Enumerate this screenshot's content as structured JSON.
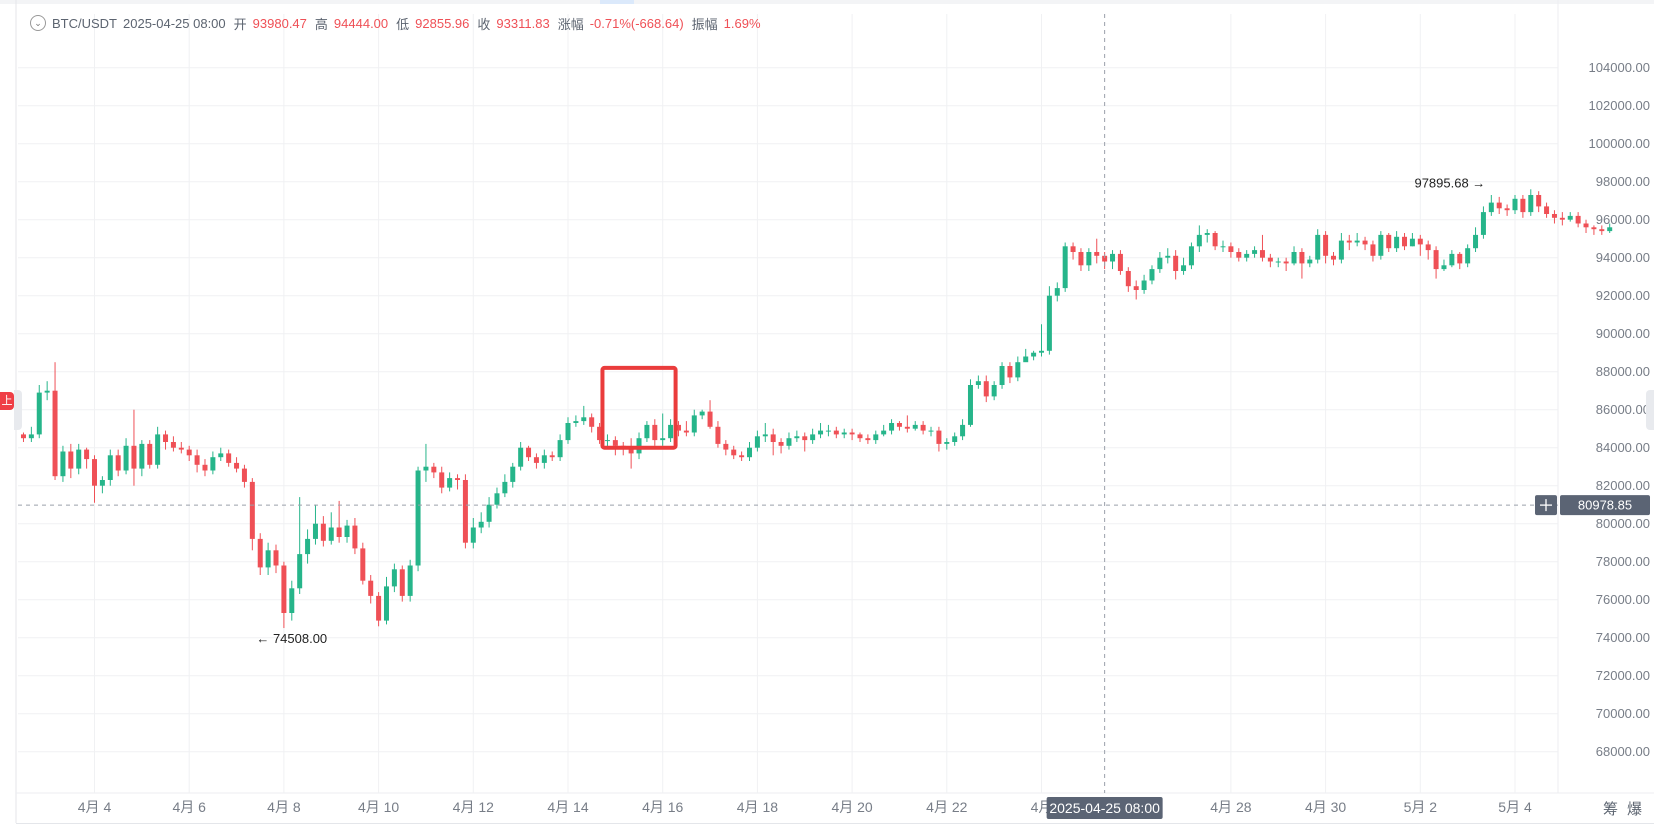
{
  "info_bar": {
    "symbol": "BTC/USDT",
    "datetime": "2025-04-25 08:00",
    "open_label": "开",
    "open": "93980.47",
    "high_label": "高",
    "high": "94444.00",
    "low_label": "低",
    "low": "92855.96",
    "close_label": "收",
    "close": "93311.83",
    "change_label": "涨幅",
    "change": "-0.71%(-668.64)",
    "amplitude_label": "振幅",
    "amplitude": "1.69%"
  },
  "left_tab_label": "上",
  "bottom_tools": [
    "筹",
    "爆"
  ],
  "crosshair": {
    "price_label": "80978.85",
    "time_label": "2025-04-25 08:00",
    "price": 80978.85
  },
  "colors": {
    "up": "#26b58a",
    "down": "#ef5056",
    "grid": "#f0f1f3",
    "axis_text": "#777d87",
    "crosshair": "#9aa0aa",
    "highlight_box": "#ea3c3c",
    "label_bg": "#5b6474"
  },
  "chart_data": {
    "type": "candlestick",
    "interval_hours": 4,
    "y_ticks": [
      68000,
      70000,
      72000,
      74000,
      76000,
      78000,
      80000,
      82000,
      84000,
      86000,
      88000,
      90000,
      92000,
      94000,
      96000,
      98000,
      100000,
      102000,
      104000
    ],
    "y_tick_labels": [
      "68000.00",
      "70000.00",
      "72000.00",
      "74000.00",
      "76000.00",
      "78000.00",
      "80000.00",
      "82000.00",
      "84000.00",
      "86000.00",
      "88000.00",
      "90000.00",
      "92000.00",
      "94000.00",
      "96000.00",
      "98000.00",
      "100000.00",
      "102000.00",
      "104000.00"
    ],
    "x_tick_labels": [
      {
        "label": "4月 4",
        "date": "2025-04-04"
      },
      {
        "label": "4月 6",
        "date": "2025-04-06"
      },
      {
        "label": "4月 8",
        "date": "2025-04-08"
      },
      {
        "label": "4月 10",
        "date": "2025-04-10"
      },
      {
        "label": "4月 12",
        "date": "2025-04-12"
      },
      {
        "label": "4月 14",
        "date": "2025-04-14"
      },
      {
        "label": "4月 16",
        "date": "2025-04-16"
      },
      {
        "label": "4月 18",
        "date": "2025-04-18"
      },
      {
        "label": "4月 20",
        "date": "2025-04-20"
      },
      {
        "label": "4月 22",
        "date": "2025-04-22"
      },
      {
        "label": "4月",
        "date": "2025-04-24"
      },
      {
        "label": "4月 28",
        "date": "2025-04-28"
      },
      {
        "label": "4月 30",
        "date": "2025-04-30"
      },
      {
        "label": "5月 2",
        "date": "2025-05-02"
      },
      {
        "label": "5月 4",
        "date": "2025-05-04"
      }
    ],
    "annotations": {
      "min": {
        "label": "74508.00",
        "price": 74508.0,
        "time": "2025-04-07 08:00"
      },
      "max": {
        "label": "97895.68",
        "price": 97895.68,
        "time": "2025-05-03 12:00"
      }
    },
    "highlight_window": {
      "start": "2025-04-14 20:00",
      "end": "2025-04-16 04:00",
      "price_low": 84000,
      "price_high": 88200
    },
    "hover_time": "2025-04-25 08:00",
    "start_time": "2025-04-02 12:00",
    "candles": [
      [
        84700,
        84500,
        84800,
        84300
      ],
      [
        84500,
        84700,
        85100,
        84300
      ],
      [
        84700,
        86900,
        87300,
        84500
      ],
      [
        86900,
        87000,
        87500,
        86500
      ],
      [
        87000,
        82500,
        88500,
        82300
      ],
      [
        82500,
        83800,
        84100,
        82200
      ],
      [
        83800,
        82900,
        84200,
        82400
      ],
      [
        82900,
        83900,
        84200,
        82600
      ],
      [
        83900,
        83400,
        84000,
        82900
      ],
      [
        83400,
        82000,
        83600,
        81100
      ],
      [
        82000,
        82300,
        82500,
        81600
      ],
      [
        82300,
        83600,
        83900,
        82000
      ],
      [
        83600,
        82800,
        83900,
        82500
      ],
      [
        82800,
        84100,
        84500,
        82600
      ],
      [
        84100,
        82900,
        86000,
        82000
      ],
      [
        82900,
        84200,
        84400,
        82500
      ],
      [
        84200,
        83100,
        84400,
        82900
      ],
      [
        83100,
        84700,
        85100,
        82900
      ],
      [
        84700,
        84300,
        84900,
        83900
      ],
      [
        84300,
        84000,
        84600,
        83800
      ],
      [
        84000,
        83900,
        84300,
        83700
      ],
      [
        83900,
        83600,
        84100,
        83300
      ],
      [
        83600,
        83100,
        83900,
        82700
      ],
      [
        83100,
        82800,
        83400,
        82500
      ],
      [
        82800,
        83500,
        83800,
        82600
      ],
      [
        83500,
        83700,
        84000,
        83300
      ],
      [
        83700,
        83200,
        83900,
        83000
      ],
      [
        83200,
        82900,
        83500,
        82700
      ],
      [
        82900,
        82200,
        83100,
        81900
      ],
      [
        82200,
        79200,
        82400,
        78600
      ],
      [
        79200,
        77700,
        79500,
        77300
      ],
      [
        77700,
        78600,
        79000,
        77300
      ],
      [
        78600,
        77800,
        78900,
        77400
      ],
      [
        77800,
        75300,
        78000,
        74508
      ],
      [
        75300,
        76600,
        77000,
        74900
      ],
      [
        76600,
        78400,
        81400,
        76300
      ],
      [
        78400,
        79200,
        79700,
        77900
      ],
      [
        79200,
        80000,
        81000,
        78900
      ],
      [
        80000,
        79100,
        80400,
        78800
      ],
      [
        79100,
        79800,
        80600,
        78900
      ],
      [
        79800,
        79300,
        81200,
        79000
      ],
      [
        79300,
        79900,
        80200,
        79000
      ],
      [
        79900,
        78700,
        80300,
        78400
      ],
      [
        78700,
        77000,
        79000,
        76800
      ],
      [
        77000,
        76200,
        77300,
        75800
      ],
      [
        76200,
        74900,
        76400,
        74600
      ],
      [
        74900,
        76700,
        77200,
        74700
      ],
      [
        76700,
        77600,
        77900,
        76400
      ],
      [
        77600,
        76200,
        77800,
        75900
      ],
      [
        76200,
        77800,
        78100,
        75900
      ],
      [
        77800,
        82800,
        83000,
        77500
      ],
      [
        82800,
        83000,
        84200,
        82200
      ],
      [
        83000,
        82700,
        83200,
        82400
      ],
      [
        82700,
        81900,
        83000,
        81600
      ],
      [
        81900,
        82400,
        82700,
        81700
      ],
      [
        82400,
        82300,
        82600,
        81800
      ],
      [
        82300,
        79000,
        82600,
        78700
      ],
      [
        79000,
        79800,
        80300,
        78700
      ],
      [
        79800,
        80100,
        80600,
        79500
      ],
      [
        80100,
        81000,
        81400,
        79800
      ],
      [
        81000,
        81600,
        81900,
        80800
      ],
      [
        81600,
        82200,
        82600,
        81400
      ],
      [
        82200,
        83000,
        83200,
        81900
      ],
      [
        83000,
        84000,
        84300,
        82800
      ],
      [
        84000,
        83500,
        84100,
        83300
      ],
      [
        83500,
        83200,
        83700,
        82900
      ],
      [
        83200,
        83600,
        83900,
        82900
      ],
      [
        83600,
        83500,
        83800,
        83300
      ],
      [
        83500,
        84400,
        84700,
        83300
      ],
      [
        84400,
        85300,
        85600,
        84200
      ],
      [
        85300,
        85400,
        85700,
        85100
      ],
      [
        85400,
        85600,
        86200,
        85200
      ],
      [
        85600,
        85100,
        85800,
        84800
      ],
      [
        85100,
        84400,
        85300,
        84200
      ],
      [
        84400,
        84400,
        84700,
        84000
      ],
      [
        84400,
        84100,
        84600,
        83600
      ],
      [
        84100,
        84000,
        84300,
        83600
      ],
      [
        84000,
        83700,
        84500,
        82900
      ],
      [
        83700,
        84500,
        84800,
        83400
      ],
      [
        84500,
        85200,
        85400,
        84300
      ],
      [
        85200,
        84400,
        85500,
        84100
      ],
      [
        84400,
        84500,
        85800,
        84100
      ],
      [
        84500,
        85200,
        85500,
        84300
      ],
      [
        85200,
        84900,
        85400,
        84600
      ],
      [
        84900,
        84800,
        85400,
        84600
      ],
      [
        84800,
        85700,
        86000,
        84600
      ],
      [
        85700,
        85900,
        86000,
        85500
      ],
      [
        85900,
        85100,
        86500,
        85000
      ],
      [
        85100,
        84200,
        85400,
        84000
      ],
      [
        84200,
        83900,
        84400,
        83600
      ],
      [
        83900,
        83600,
        84100,
        83400
      ],
      [
        83600,
        83500,
        83800,
        83300
      ],
      [
        83500,
        84000,
        84300,
        83300
      ],
      [
        84000,
        84600,
        84900,
        83800
      ],
      [
        84600,
        84700,
        85300,
        84300
      ],
      [
        84700,
        84300,
        85000,
        83600
      ],
      [
        84300,
        84100,
        84500,
        83700
      ],
      [
        84100,
        84500,
        84800,
        83900
      ],
      [
        84500,
        84600,
        84900,
        84300
      ],
      [
        84600,
        84400,
        84800,
        83800
      ],
      [
        84400,
        84700,
        85000,
        84200
      ],
      [
        84700,
        84900,
        85300,
        84500
      ],
      [
        84900,
        84900,
        85200,
        84600
      ],
      [
        84900,
        84700,
        85100,
        84500
      ],
      [
        84700,
        84800,
        85000,
        84500
      ],
      [
        84800,
        84700,
        85000,
        84400
      ],
      [
        84700,
        84500,
        84800,
        84300
      ],
      [
        84500,
        84400,
        84700,
        84200
      ],
      [
        84400,
        84700,
        84900,
        84200
      ],
      [
        84700,
        84900,
        85200,
        84600
      ],
      [
        84900,
        85300,
        85500,
        84700
      ],
      [
        85300,
        85100,
        85400,
        84900
      ],
      [
        85100,
        85000,
        85700,
        84800
      ],
      [
        85000,
        85200,
        85400,
        84900
      ],
      [
        85200,
        84900,
        85400,
        84700
      ],
      [
        84900,
        84900,
        85100,
        84600
      ],
      [
        84900,
        84200,
        85100,
        83800
      ],
      [
        84200,
        84300,
        84500,
        83900
      ],
      [
        84300,
        84600,
        84800,
        84100
      ],
      [
        84600,
        85200,
        85500,
        84400
      ],
      [
        85200,
        87300,
        87600,
        85100
      ],
      [
        87300,
        87500,
        87800,
        87100
      ],
      [
        87500,
        86700,
        87800,
        86400
      ],
      [
        86700,
        87300,
        87500,
        86500
      ],
      [
        87300,
        88300,
        88500,
        87100
      ],
      [
        88300,
        87700,
        88500,
        87400
      ],
      [
        87700,
        88500,
        88800,
        87500
      ],
      [
        88500,
        88800,
        89200,
        88600
      ],
      [
        88800,
        89000,
        89100,
        88600
      ],
      [
        89000,
        89100,
        90500,
        88800
      ],
      [
        89100,
        92000,
        92500,
        88900
      ],
      [
        92000,
        92400,
        92700,
        91700
      ],
      [
        92400,
        94600,
        94800,
        92200
      ],
      [
        94600,
        94300,
        94800,
        93900
      ],
      [
        94300,
        93600,
        94500,
        93300
      ],
      [
        93600,
        94300,
        94500,
        93300
      ],
      [
        94300,
        94100,
        95000,
        93700
      ],
      [
        94100,
        93800,
        94300,
        93400
      ],
      [
        93800,
        94200,
        94400,
        93400
      ],
      [
        94200,
        93300,
        94400,
        93100
      ],
      [
        93300,
        92500,
        93500,
        92200
      ],
      [
        92500,
        92300,
        92800,
        91800
      ],
      [
        92300,
        92800,
        93100,
        92100
      ],
      [
        92800,
        93400,
        93600,
        92600
      ],
      [
        93400,
        94000,
        94300,
        93200
      ],
      [
        94000,
        94100,
        94500,
        93700
      ],
      [
        94100,
        93300,
        94400,
        92855
      ],
      [
        93300,
        93600,
        94000,
        93100
      ],
      [
        93600,
        94600,
        94800,
        93400
      ],
      [
        94600,
        95200,
        95700,
        94300
      ],
      [
        95200,
        95300,
        95500,
        94800
      ],
      [
        95300,
        94600,
        95400,
        94400
      ],
      [
        94600,
        94600,
        94900,
        94300
      ],
      [
        94600,
        94300,
        94800,
        94000
      ],
      [
        94300,
        94000,
        94500,
        93800
      ],
      [
        94000,
        94200,
        94400,
        93800
      ],
      [
        94200,
        94400,
        94600,
        94000
      ],
      [
        94400,
        94000,
        95200,
        93800
      ],
      [
        94000,
        93800,
        94200,
        93500
      ],
      [
        93800,
        93800,
        94000,
        93500
      ],
      [
        93800,
        93700,
        94000,
        93300
      ],
      [
        93700,
        94300,
        94600,
        93600
      ],
      [
        94300,
        93700,
        94500,
        92900
      ],
      [
        93700,
        93900,
        94100,
        93500
      ],
      [
        93900,
        95200,
        95500,
        93700
      ],
      [
        95200,
        94100,
        95400,
        93700
      ],
      [
        94100,
        93900,
        94300,
        93600
      ],
      [
        93900,
        94900,
        95300,
        93700
      ],
      [
        94900,
        94800,
        95200,
        94400
      ],
      [
        94800,
        94900,
        95300,
        94600
      ],
      [
        94900,
        94700,
        95100,
        94400
      ],
      [
        94700,
        94100,
        94900,
        93800
      ],
      [
        94100,
        95200,
        95400,
        93900
      ],
      [
        95200,
        94500,
        95300,
        94300
      ],
      [
        94500,
        95100,
        95400,
        94300
      ],
      [
        95100,
        94600,
        95300,
        94400
      ],
      [
        94600,
        95000,
        95300,
        94600
      ],
      [
        95000,
        94700,
        95200,
        94100
      ],
      [
        94700,
        94400,
        94900,
        93900
      ],
      [
        94400,
        93400,
        94600,
        92900
      ],
      [
        93400,
        93600,
        93900,
        93300
      ],
      [
        93600,
        94200,
        94400,
        93500
      ],
      [
        94200,
        93700,
        94300,
        93400
      ],
      [
        93700,
        94500,
        94700,
        93500
      ],
      [
        94500,
        95200,
        95600,
        94300
      ],
      [
        95200,
        96400,
        96700,
        95000
      ],
      [
        96400,
        96900,
        97300,
        96200
      ],
      [
        96900,
        96600,
        97200,
        96300
      ],
      [
        96600,
        96500,
        96800,
        96200
      ],
      [
        96500,
        97100,
        97300,
        96300
      ],
      [
        97100,
        96400,
        97300,
        96100
      ],
      [
        96400,
        97300,
        97600,
        96200
      ],
      [
        97300,
        96700,
        97500,
        96400
      ],
      [
        96700,
        96300,
        96900,
        96100
      ],
      [
        96300,
        96100,
        96500,
        95800
      ],
      [
        96100,
        96000,
        96400,
        95700
      ],
      [
        96000,
        96200,
        96400,
        95900
      ],
      [
        96200,
        95800,
        96400,
        95600
      ],
      [
        95800,
        95600,
        96000,
        95300
      ],
      [
        95600,
        95500,
        95700,
        95200
      ],
      [
        95500,
        95400,
        95700,
        95200
      ],
      [
        95400,
        95600,
        95800,
        95300
      ]
    ]
  }
}
